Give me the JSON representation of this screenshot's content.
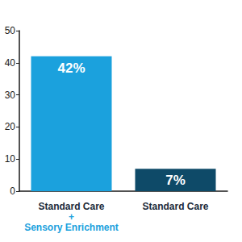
{
  "chart_data": {
    "type": "bar",
    "categories": [
      "Standard Care\n+\nSensory Enrichment",
      "Standard Care"
    ],
    "values": [
      42,
      7
    ],
    "value_labels": [
      "42%",
      "7%"
    ],
    "colors": [
      "#1ba1dd",
      "#0e4a68"
    ],
    "ylim": [
      0,
      50
    ],
    "yticks": [
      0,
      10,
      20,
      30,
      40,
      50
    ],
    "grid": false,
    "data_labels": true
  }
}
